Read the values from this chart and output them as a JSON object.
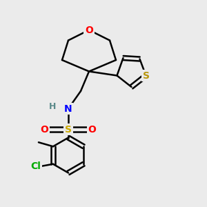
{
  "bg_color": "#ebebeb",
  "bond_color": "#000000",
  "bond_width": 1.8,
  "atom_colors": {
    "O": "#ff0000",
    "S_thio": "#b8960c",
    "S_sulfo": "#ccaa00",
    "N": "#0000ff",
    "H": "#5a8a8a",
    "Cl": "#00aa00",
    "C": "#000000"
  },
  "font_size_atom": 10,
  "figsize": [
    3.0,
    3.0
  ],
  "dpi": 100
}
